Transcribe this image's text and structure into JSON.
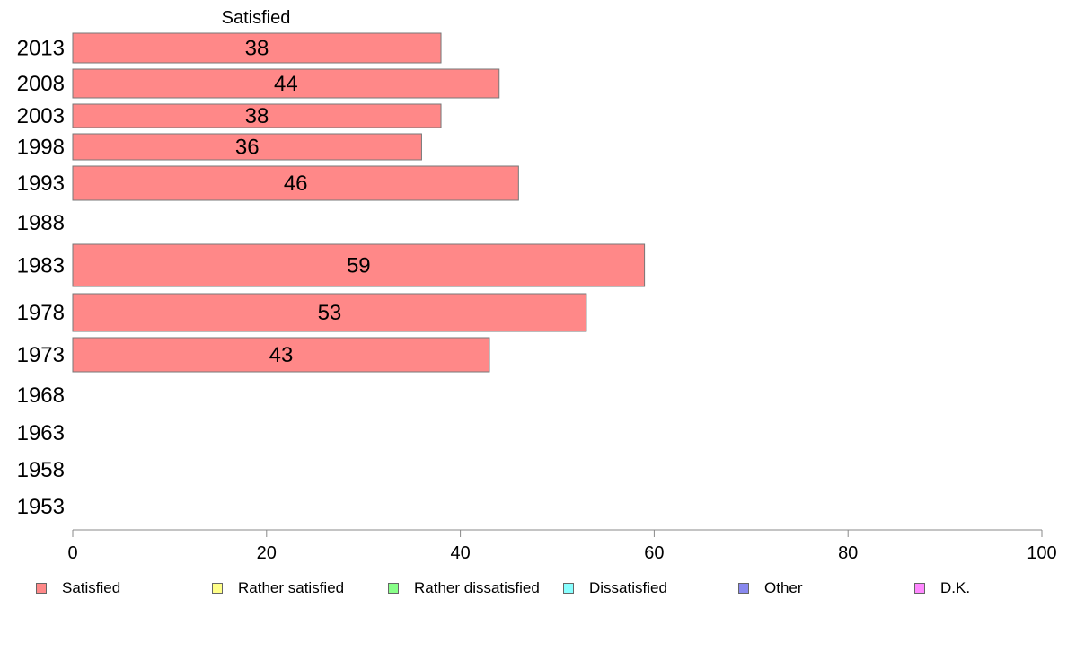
{
  "chart_data": {
    "type": "bar",
    "orientation": "horizontal",
    "title": "Satisfied",
    "categories": [
      "2013",
      "2008",
      "2003",
      "1998",
      "1993",
      "1988",
      "1983",
      "1978",
      "1973",
      "1968",
      "1963",
      "1958",
      "1953"
    ],
    "series": [
      {
        "name": "Satisfied",
        "color": "#ff8888",
        "values": [
          38,
          44,
          38,
          36,
          46,
          null,
          59,
          53,
          43,
          null,
          null,
          null,
          null
        ]
      }
    ],
    "data_labels": [
      "38",
      "44",
      "38",
      "36",
      "46",
      "",
      "59",
      "53",
      "43",
      "",
      "",
      "",
      ""
    ],
    "xlim": [
      0,
      100
    ],
    "xticks": [
      0,
      20,
      40,
      60,
      80,
      100
    ],
    "grid": false,
    "legend_position": "bottom"
  },
  "legend": [
    {
      "label": "Satisfied",
      "color": "#ff8888"
    },
    {
      "label": "Rather satisfied",
      "color": "#ffff88"
    },
    {
      "label": "Rather dissatisfied",
      "color": "#88ff88"
    },
    {
      "label": "Dissatisfied",
      "color": "#88ffff"
    },
    {
      "label": "Other",
      "color": "#8888ee"
    },
    {
      "label": "D.K.",
      "color": "#ff88ff"
    }
  ]
}
